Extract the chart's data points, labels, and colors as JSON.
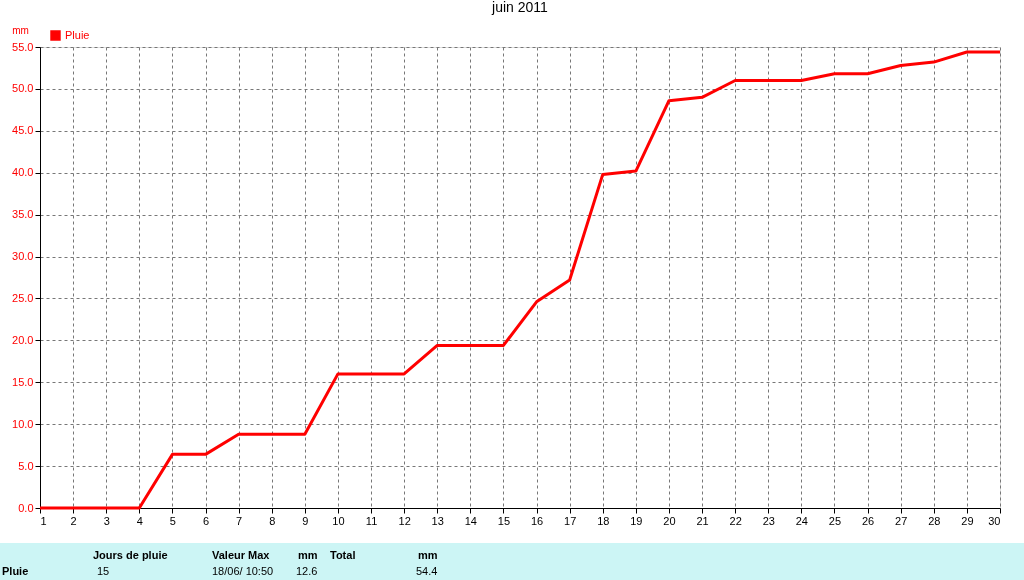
{
  "chart_data": {
    "type": "line",
    "title": "juin 2011",
    "ylabel": "mm",
    "x": [
      1,
      2,
      3,
      4,
      5,
      6,
      7,
      8,
      9,
      10,
      11,
      12,
      13,
      14,
      15,
      16,
      17,
      18,
      19,
      20,
      21,
      22,
      23,
      24,
      25,
      26,
      27,
      28,
      29,
      30
    ],
    "series": [
      {
        "name": "Pluie",
        "color": "#ff0000",
        "values": [
          0,
          0,
          0,
          0,
          6.4,
          6.4,
          8.8,
          8.8,
          8.8,
          16.0,
          16.0,
          16.0,
          19.4,
          19.4,
          19.4,
          24.6,
          27.2,
          39.8,
          40.2,
          48.6,
          49.0,
          51.0,
          51.0,
          51.0,
          51.8,
          51.8,
          52.8,
          53.2,
          54.4,
          54.4
        ]
      }
    ],
    "xlim": [
      1,
      30
    ],
    "xticks": [
      1,
      2,
      3,
      4,
      5,
      6,
      7,
      8,
      9,
      10,
      11,
      12,
      13,
      14,
      15,
      16,
      17,
      18,
      19,
      20,
      21,
      22,
      23,
      24,
      25,
      26,
      27,
      28,
      29,
      30
    ],
    "ylim": [
      0,
      55
    ],
    "yticks": [
      {
        "value": 0,
        "label": "0.0"
      },
      {
        "value": 5,
        "label": "5.0"
      },
      {
        "value": 10,
        "label": "10.0"
      },
      {
        "value": 15,
        "label": "15.0"
      },
      {
        "value": 20,
        "label": "20.0"
      },
      {
        "value": 25,
        "label": "25.0"
      },
      {
        "value": 30,
        "label": "30.0"
      },
      {
        "value": 35,
        "label": "35.0"
      },
      {
        "value": 40,
        "label": "40.0"
      },
      {
        "value": 45,
        "label": "45.0"
      },
      {
        "value": 50,
        "label": "50.0"
      },
      {
        "value": 55,
        "label": "55.0"
      }
    ],
    "grid": true,
    "legend": "top left",
    "marker": "none",
    "line_style": "solid",
    "annotations": [
      "Pluie",
      "Jours de pluie",
      "15",
      "Valeur Max",
      "mm",
      "18/06/ 10:50",
      "12.6",
      "Total",
      "mm",
      "54.4"
    ]
  }
}
